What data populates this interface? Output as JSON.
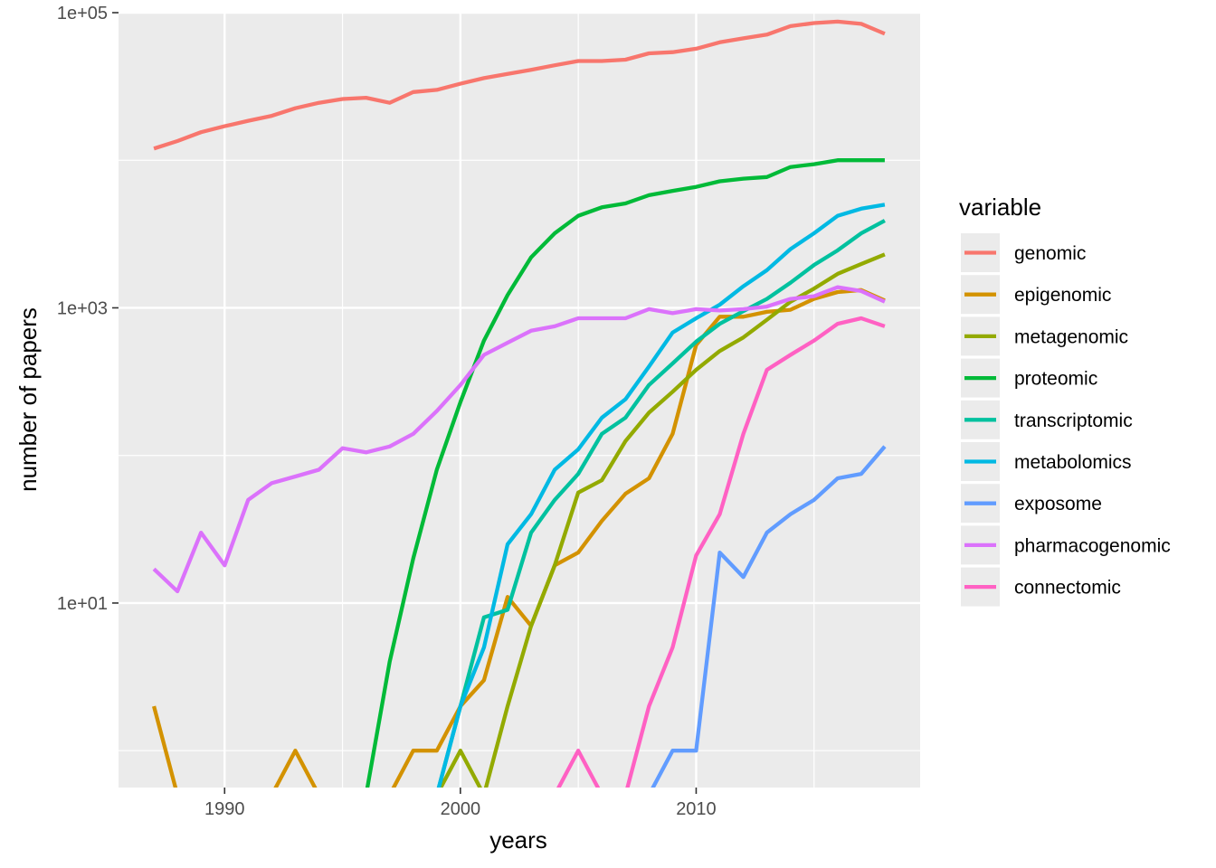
{
  "chart_data": {
    "type": "line",
    "xlabel": "years",
    "ylabel": "number of papers",
    "y_scale": "log10",
    "xlim": [
      1985.5,
      2019.5
    ],
    "ylim_log10": [
      -0.25,
      5.0
    ],
    "x_ticks": [
      1990,
      2000,
      2010
    ],
    "x_tick_labels": [
      "1990",
      "2000",
      "2010"
    ],
    "y_ticks": [
      10,
      1000,
      100000
    ],
    "y_tick_labels": [
      "1e+01",
      "1e+03",
      "1e+05"
    ],
    "grid": true,
    "legend_title": "variable",
    "legend_position": "right",
    "x": [
      1987,
      1988,
      1989,
      1990,
      1991,
      1992,
      1993,
      1994,
      1995,
      1996,
      1997,
      1998,
      1999,
      2000,
      2001,
      2002,
      2003,
      2004,
      2005,
      2006,
      2007,
      2008,
      2009,
      2010,
      2011,
      2012,
      2013,
      2014,
      2015,
      2016,
      2017,
      2018
    ],
    "series": [
      {
        "name": "genomic",
        "color": "#F8766D",
        "values": [
          12000,
          13500,
          15500,
          17000,
          18500,
          20000,
          22500,
          24500,
          26000,
          26500,
          24500,
          29000,
          30000,
          33000,
          36000,
          38500,
          41000,
          44000,
          47000,
          47000,
          48000,
          53000,
          54000,
          57000,
          63000,
          67000,
          71000,
          81000,
          85000,
          87000,
          84000,
          72000
        ]
      },
      {
        "name": "epigenomic",
        "color": "#D39200",
        "values": [
          2,
          0.5,
          0.5,
          0.5,
          0.5,
          0.5,
          1,
          0.5,
          0.5,
          0.5,
          0.5,
          1,
          1,
          2,
          3,
          11,
          7,
          18,
          22,
          36,
          55,
          70,
          140,
          560,
          870,
          870,
          940,
          970,
          1150,
          1280,
          1320,
          1120
        ]
      },
      {
        "name": "metagenomic",
        "color": "#93AA00",
        "values": [
          0.5,
          0.5,
          0.5,
          0.5,
          0.5,
          0.5,
          0.5,
          0.5,
          0.5,
          0.5,
          0.5,
          0.5,
          0.5,
          1,
          0.5,
          2,
          7,
          18,
          56,
          68,
          125,
          195,
          270,
          380,
          510,
          630,
          830,
          1100,
          1350,
          1700,
          1980,
          2300
        ]
      },
      {
        "name": "proteomic",
        "color": "#00BA38",
        "values": [
          0.5,
          0.5,
          0.5,
          0.5,
          0.5,
          0.5,
          0.5,
          0.5,
          0.5,
          0.5,
          4,
          20,
          80,
          230,
          600,
          1220,
          2200,
          3200,
          4200,
          4800,
          5100,
          5800,
          6200,
          6600,
          7200,
          7500,
          7700,
          9000,
          9400,
          10000,
          10000,
          10000
        ]
      },
      {
        "name": "transcriptomic",
        "color": "#00C19F",
        "values": [
          0.5,
          0.5,
          0.5,
          0.5,
          0.5,
          0.5,
          0.5,
          0.5,
          0.5,
          0.5,
          0.5,
          0.5,
          0.5,
          2,
          8,
          9,
          30,
          50,
          75,
          140,
          180,
          300,
          420,
          590,
          780,
          950,
          1150,
          1480,
          1950,
          2450,
          3200,
          3900
        ]
      },
      {
        "name": "metabolomics",
        "color": "#00B9E3",
        "values": [
          0.5,
          0.5,
          0.5,
          0.5,
          0.5,
          0.5,
          0.5,
          0.5,
          0.5,
          0.5,
          0.5,
          0.5,
          0.5,
          2,
          5,
          25,
          40,
          80,
          110,
          180,
          240,
          400,
          680,
          850,
          1050,
          1400,
          1800,
          2500,
          3200,
          4200,
          4700,
          5000
        ]
      },
      {
        "name": "exposome",
        "color": "#619CFF",
        "values": [
          0.5,
          0.5,
          0.5,
          0.5,
          0.5,
          0.5,
          0.5,
          0.5,
          0.5,
          0.5,
          0.5,
          0.5,
          0.5,
          0.5,
          0.5,
          0.5,
          0.5,
          0.5,
          0.5,
          0.5,
          0.5,
          0.5,
          1,
          1,
          22,
          15,
          30,
          40,
          50,
          70,
          75,
          115
        ]
      },
      {
        "name": "pharmacogenomic",
        "color": "#DB72FB",
        "values": [
          17,
          12,
          30,
          18,
          50,
          65,
          72,
          80,
          112,
          105,
          115,
          140,
          200,
          300,
          480,
          580,
          700,
          750,
          850,
          850,
          850,
          980,
          920,
          980,
          960,
          980,
          1020,
          1150,
          1200,
          1380,
          1300,
          1100
        ]
      },
      {
        "name": "connectomic",
        "color": "#FF61C3",
        "values": [
          0.5,
          0.5,
          0.5,
          0.5,
          0.5,
          0.5,
          0.5,
          0.5,
          0.5,
          0.5,
          0.5,
          0.5,
          0.5,
          0.5,
          0.5,
          0.5,
          0.5,
          0.5,
          1,
          0.5,
          0.5,
          2,
          5,
          21,
          40,
          140,
          380,
          480,
          600,
          780,
          850,
          750
        ]
      }
    ]
  }
}
